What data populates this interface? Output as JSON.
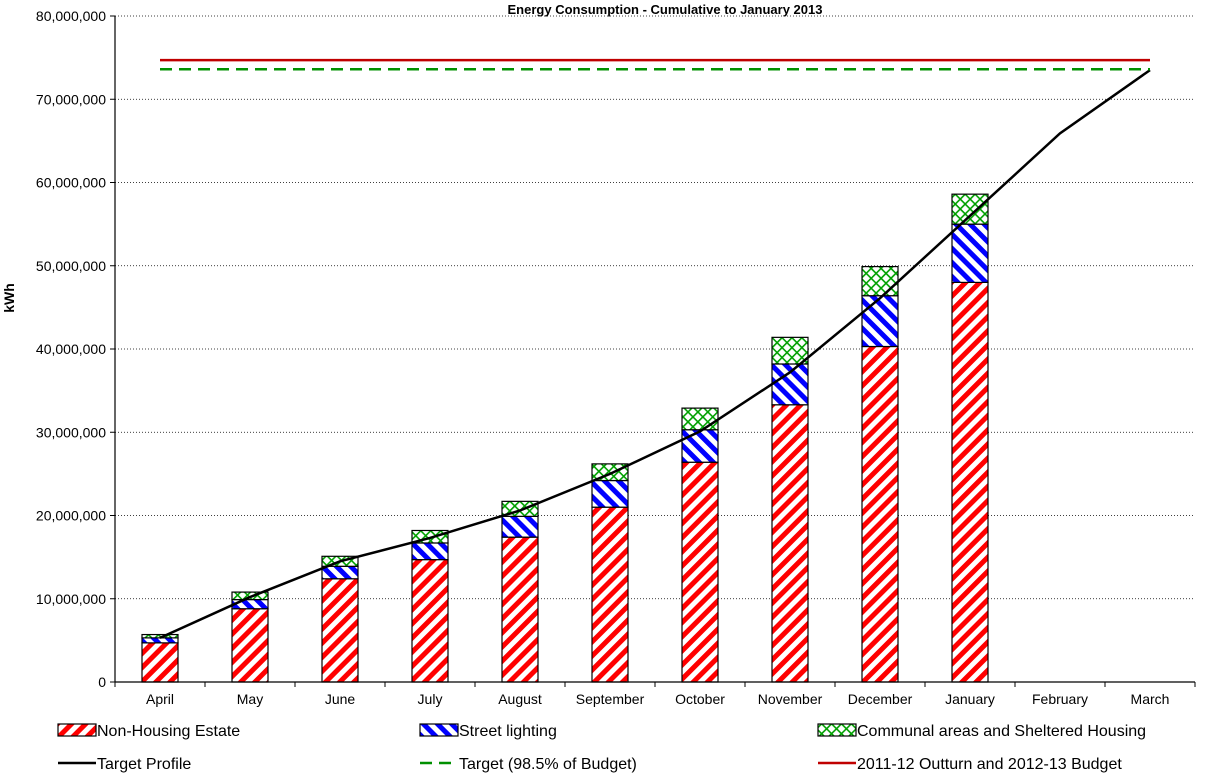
{
  "chart_data": {
    "type": "bar",
    "title": "Energy Consumption - Cumulative to January 2013",
    "ylabel": "kWh",
    "xlabel": "",
    "ylim": [
      0,
      80000000
    ],
    "yticks": [
      0,
      10000000,
      20000000,
      30000000,
      40000000,
      50000000,
      60000000,
      70000000,
      80000000
    ],
    "ytick_labels": [
      "0",
      "10,000,000",
      "20,000,000",
      "30,000,000",
      "40,000,000",
      "50,000,000",
      "60,000,000",
      "70,000,000",
      "80,000,000"
    ],
    "grid": true,
    "stacked": true,
    "categories": [
      "April",
      "May",
      "June",
      "July",
      "August",
      "September",
      "October",
      "November",
      "December",
      "January",
      "February",
      "March"
    ],
    "series": [
      {
        "name": "Non-Housing Estate",
        "kind": "bar",
        "color": "#ff0000",
        "values": [
          4700000,
          8800000,
          12400000,
          14700000,
          17400000,
          21000000,
          26400000,
          33300000,
          40300000,
          48000000,
          null,
          null
        ]
      },
      {
        "name": "Street lighting",
        "kind": "bar",
        "color": "#0000ff",
        "values": [
          600000,
          1100000,
          1500000,
          2000000,
          2500000,
          3200000,
          3900000,
          4900000,
          6100000,
          7000000,
          null,
          null
        ]
      },
      {
        "name": "Communal areas and Sheltered Housing",
        "kind": "bar",
        "color": "#00a000",
        "values": [
          400000,
          900000,
          1200000,
          1500000,
          1800000,
          2000000,
          2600000,
          3200000,
          3500000,
          3600000,
          null,
          null
        ]
      },
      {
        "name": "Target Profile",
        "kind": "line",
        "color": "#000000",
        "values": [
          5300000,
          10200000,
          14500000,
          17300000,
          20600000,
          25000000,
          30100000,
          37200000,
          46100000,
          56000000,
          65900000,
          73500000
        ]
      },
      {
        "name": "Target (98.5% of Budget)",
        "kind": "line",
        "style": "dashed",
        "color": "#009000",
        "values": [
          73600000,
          73600000,
          73600000,
          73600000,
          73600000,
          73600000,
          73600000,
          73600000,
          73600000,
          73600000,
          73600000,
          73600000
        ]
      },
      {
        "name": "2011-12 Outturn and 2012-13 Budget",
        "kind": "line",
        "color": "#c00000",
        "values": [
          74700000,
          74700000,
          74700000,
          74700000,
          74700000,
          74700000,
          74700000,
          74700000,
          74700000,
          74700000,
          74700000,
          74700000
        ]
      }
    ]
  }
}
